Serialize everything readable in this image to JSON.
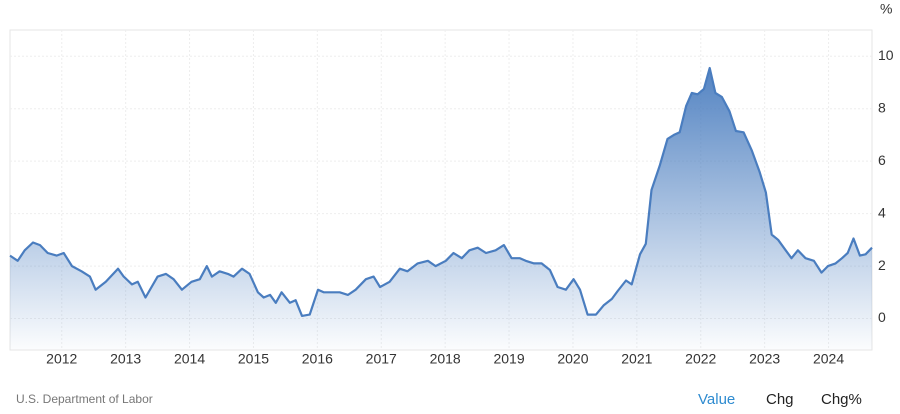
{
  "chart_data": {
    "type": "area",
    "y_axis_label": "%",
    "source": "U.S. Department of Labor",
    "color": "#4a7dbf",
    "grid": true,
    "xlim": [
      2011.19,
      2024.68
    ],
    "ylim": [
      -1.2,
      11
    ],
    "xticks": [
      2012,
      2013,
      2014,
      2015,
      2016,
      2017,
      2018,
      2019,
      2020,
      2021,
      2022,
      2023,
      2024
    ],
    "yticks": [
      0,
      2,
      4,
      6,
      8,
      10
    ],
    "x": [
      2011.19,
      2011.31,
      2011.42,
      2011.55,
      2011.66,
      2011.78,
      2011.92,
      2012.03,
      2012.16,
      2012.31,
      2012.44,
      2012.53,
      2012.69,
      2012.88,
      2012.97,
      2013.1,
      2013.19,
      2013.31,
      2013.5,
      2013.63,
      2013.75,
      2013.88,
      2014.03,
      2014.16,
      2014.27,
      2014.35,
      2014.47,
      2014.6,
      2014.69,
      2014.82,
      2014.94,
      2015.07,
      2015.16,
      2015.26,
      2015.35,
      2015.44,
      2015.57,
      2015.66,
      2015.76,
      2015.88,
      2016.01,
      2016.1,
      2016.19,
      2016.35,
      2016.48,
      2016.6,
      2016.76,
      2016.88,
      2016.98,
      2017.13,
      2017.29,
      2017.41,
      2017.57,
      2017.73,
      2017.85,
      2018.01,
      2018.13,
      2018.26,
      2018.38,
      2018.51,
      2018.64,
      2018.79,
      2018.92,
      2019.04,
      2019.17,
      2019.26,
      2019.39,
      2019.51,
      2019.64,
      2019.76,
      2019.89,
      2020.01,
      2020.11,
      2020.23,
      2020.36,
      2020.48,
      2020.61,
      2020.7,
      2020.83,
      2020.92,
      2021.05,
      2021.14,
      2021.23,
      2021.36,
      2021.48,
      2021.58,
      2021.67,
      2021.77,
      2021.86,
      2021.95,
      2022.05,
      2022.14,
      2022.23,
      2022.33,
      2022.45,
      2022.55,
      2022.67,
      2022.8,
      2022.92,
      2023.02,
      2023.11,
      2023.21,
      2023.33,
      2023.42,
      2023.52,
      2023.64,
      2023.77,
      2023.89,
      2023.99,
      2024.11,
      2024.21,
      2024.3,
      2024.39,
      2024.49,
      2024.58,
      2024.68
    ],
    "values": [
      2.4,
      2.2,
      2.6,
      2.9,
      2.8,
      2.5,
      2.4,
      2.5,
      2.0,
      1.8,
      1.6,
      1.1,
      1.4,
      1.9,
      1.6,
      1.3,
      1.4,
      0.8,
      1.6,
      1.7,
      1.5,
      1.1,
      1.4,
      1.5,
      2.0,
      1.6,
      1.8,
      1.7,
      1.6,
      1.9,
      1.7,
      1.0,
      0.8,
      0.9,
      0.6,
      1.0,
      0.6,
      0.7,
      0.1,
      0.15,
      1.1,
      1.0,
      1.0,
      1.0,
      0.9,
      1.1,
      1.5,
      1.6,
      1.2,
      1.4,
      1.9,
      1.8,
      2.1,
      2.2,
      2.0,
      2.2,
      2.5,
      2.3,
      2.6,
      2.7,
      2.5,
      2.6,
      2.8,
      2.3,
      2.3,
      2.2,
      2.1,
      2.1,
      1.85,
      1.2,
      1.1,
      1.5,
      1.1,
      0.15,
      0.15,
      0.5,
      0.75,
      1.05,
      1.45,
      1.3,
      2.45,
      2.85,
      4.9,
      5.85,
      6.85,
      7.0,
      7.1,
      8.1,
      8.6,
      8.55,
      8.75,
      9.55,
      8.6,
      8.45,
      7.9,
      7.15,
      7.1,
      6.4,
      5.6,
      4.8,
      3.2,
      3.0,
      2.6,
      2.3,
      2.6,
      2.3,
      2.2,
      1.75,
      2.0,
      2.1,
      2.3,
      2.5,
      3.05,
      2.4,
      2.45,
      2.7
    ]
  },
  "tabs": [
    "Value",
    "Chg",
    "Chg%"
  ]
}
